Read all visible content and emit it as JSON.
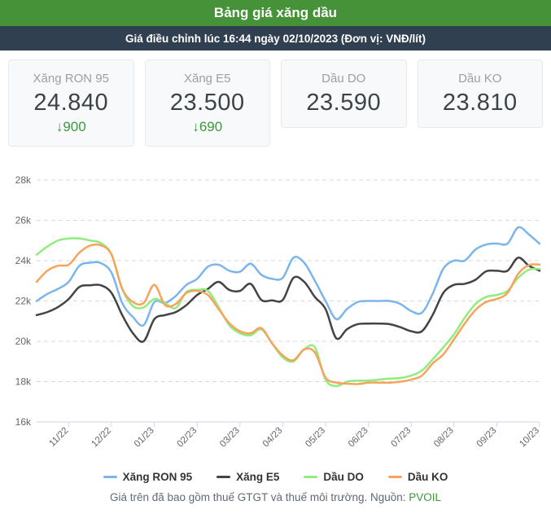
{
  "header": {
    "title": "Bảng giá xăng dầu",
    "subtitle": "Giá điều chỉnh lúc 16:44 ngày 02/10/2023 (Đơn vị: VNĐ/lít)"
  },
  "colors": {
    "header_green": "#459238",
    "subheader_navy": "#314050",
    "change_green": "#3c9a3c",
    "axis_line": "#ccd6eb",
    "gridline": "#d9d9d9",
    "axis_text": "#666666"
  },
  "cards": [
    {
      "label": "Xăng RON 95",
      "price": "24.840",
      "change_arrow": "↓",
      "change": "900"
    },
    {
      "label": "Xăng E5",
      "price": "23.500",
      "change_arrow": "↓",
      "change": "690"
    },
    {
      "label": "Dầu DO",
      "price": "23.590"
    },
    {
      "label": "Dầu KO",
      "price": "23.810"
    }
  ],
  "chart_data": {
    "type": "line",
    "title": "",
    "xlabel": "",
    "ylabel": "VNĐ/lít",
    "grid": "dashed-horizontal",
    "legend_position": "bottom",
    "x_tick_labels": [
      "11/22",
      "12/22",
      "01/23",
      "02/23",
      "03/23",
      "04/23",
      "05/23",
      "06/23",
      "07/23",
      "08/23",
      "09/23",
      "10/23"
    ],
    "x_range": [
      -0.75,
      11
    ],
    "ylim": [
      16000,
      28000
    ],
    "y_ticks": [
      {
        "value": 16000,
        "label": "16k"
      },
      {
        "value": 18000,
        "label": "18k"
      },
      {
        "value": 20000,
        "label": "20k"
      },
      {
        "value": 22000,
        "label": "22k"
      },
      {
        "value": 24000,
        "label": "24k"
      },
      {
        "value": 26000,
        "label": "26k"
      },
      {
        "value": 28000,
        "label": "28k"
      }
    ],
    "x": [
      -0.75,
      -0.5,
      -0.25,
      0,
      0.25,
      0.5,
      0.75,
      1,
      1.25,
      1.5,
      1.75,
      2,
      2.25,
      2.5,
      2.75,
      3,
      3.25,
      3.5,
      3.75,
      4,
      4.25,
      4.5,
      4.75,
      5,
      5.25,
      5.5,
      5.75,
      6,
      6.25,
      6.5,
      6.75,
      7,
      7.25,
      7.5,
      7.75,
      8,
      8.25,
      8.5,
      8.75,
      9,
      9.25,
      9.5,
      9.75,
      10,
      10.25,
      10.5,
      10.75,
      11
    ],
    "series": [
      {
        "name": "Xăng RON 95",
        "color": "#7cb5ec",
        "values": [
          22000,
          22350,
          22600,
          22950,
          23750,
          23900,
          23880,
          23400,
          21900,
          21200,
          20800,
          21950,
          21900,
          22250,
          22800,
          23100,
          23700,
          23800,
          23500,
          23450,
          23850,
          23300,
          23100,
          23150,
          24150,
          23900,
          23000,
          22000,
          21100,
          21600,
          21950,
          22000,
          22000,
          22000,
          21850,
          21500,
          21420,
          22350,
          23600,
          24000,
          24000,
          24550,
          24800,
          24850,
          24850,
          25650,
          25300,
          24840
        ]
      },
      {
        "name": "Xăng E5",
        "color": "#434348",
        "values": [
          21300,
          21450,
          21700,
          22100,
          22700,
          22780,
          22780,
          22400,
          21300,
          20400,
          20000,
          21100,
          21300,
          21450,
          21800,
          22300,
          22600,
          22950,
          22550,
          22500,
          22850,
          22050,
          22030,
          22050,
          23150,
          22950,
          22200,
          21600,
          20150,
          20600,
          20850,
          20880,
          20880,
          20850,
          20700,
          20500,
          20500,
          21300,
          22400,
          22800,
          22850,
          23050,
          23470,
          23500,
          23500,
          24150,
          23750,
          23500
        ]
      },
      {
        "name": "Dầu DO",
        "color": "#90ed7d",
        "values": [
          24300,
          24700,
          25000,
          25100,
          25100,
          25000,
          24870,
          24300,
          22600,
          21750,
          21680,
          22100,
          21900,
          21650,
          22450,
          22550,
          22500,
          21700,
          20800,
          20400,
          20300,
          20600,
          19900,
          19200,
          19000,
          19600,
          19700,
          18100,
          17780,
          18000,
          18050,
          18050,
          18100,
          18150,
          18180,
          18300,
          18550,
          19100,
          19700,
          20350,
          21170,
          21850,
          22200,
          22300,
          22500,
          23150,
          23550,
          23590
        ]
      },
      {
        "name": "Dầu KO",
        "color": "#f7a35c",
        "values": [
          22950,
          23500,
          23750,
          23800,
          24400,
          24750,
          24760,
          24300,
          22600,
          21950,
          21900,
          22800,
          21800,
          21850,
          22400,
          22500,
          22300,
          21600,
          20900,
          20500,
          20400,
          20650,
          19900,
          19300,
          19060,
          19600,
          19450,
          18200,
          17950,
          17900,
          17880,
          17950,
          17950,
          17950,
          18000,
          18100,
          18300,
          18900,
          19350,
          20100,
          20880,
          21550,
          21950,
          22100,
          22400,
          23350,
          23780,
          23810
        ]
      }
    ]
  },
  "footer": {
    "text": "Giá trên đã bao gồm thuế GTGT và thuế môi trường. Nguồn:",
    "source_link": "PVOIL"
  }
}
